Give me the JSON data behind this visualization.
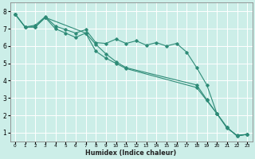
{
  "xlabel": "Humidex (Indice chaleur)",
  "bg_color": "#cceee8",
  "grid_color": "#ffffff",
  "line_color": "#2e8b77",
  "xlim": [
    -0.5,
    23.5
  ],
  "ylim": [
    0.5,
    8.5
  ],
  "xticks": [
    0,
    1,
    2,
    3,
    4,
    5,
    6,
    7,
    8,
    9,
    10,
    11,
    12,
    13,
    14,
    15,
    16,
    17,
    18,
    19,
    20,
    21,
    22,
    23
  ],
  "yticks": [
    1,
    2,
    3,
    4,
    5,
    6,
    7,
    8
  ],
  "line1_x": [
    0,
    1,
    2,
    3,
    4,
    5,
    6,
    7,
    8,
    9,
    10,
    11,
    12,
    13,
    14,
    15,
    16,
    17,
    18,
    19,
    20,
    21,
    22,
    23
  ],
  "line1_y": [
    7.85,
    7.1,
    7.2,
    7.7,
    7.15,
    6.95,
    6.75,
    6.95,
    6.2,
    6.15,
    6.4,
    6.15,
    6.3,
    6.05,
    6.2,
    6.0,
    6.15,
    5.65,
    4.75,
    3.75,
    2.1,
    1.25,
    0.85,
    0.9
  ],
  "line2_x": [
    0,
    1,
    2,
    3,
    4,
    5,
    6,
    7,
    8,
    9,
    10,
    11,
    18,
    19,
    20,
    21,
    22,
    23
  ],
  "line2_y": [
    7.85,
    7.1,
    7.1,
    7.65,
    7.0,
    6.75,
    6.5,
    6.75,
    6.1,
    5.55,
    5.1,
    4.75,
    3.75,
    2.9,
    2.1,
    1.3,
    0.8,
    0.9
  ],
  "line3_x": [
    0,
    1,
    2,
    3,
    7,
    8,
    9,
    10,
    11,
    18,
    19,
    20,
    21,
    22,
    23
  ],
  "line3_y": [
    7.85,
    7.1,
    7.1,
    7.65,
    6.75,
    5.7,
    5.3,
    5.0,
    4.7,
    3.6,
    2.85,
    2.1,
    1.3,
    0.8,
    0.9
  ]
}
